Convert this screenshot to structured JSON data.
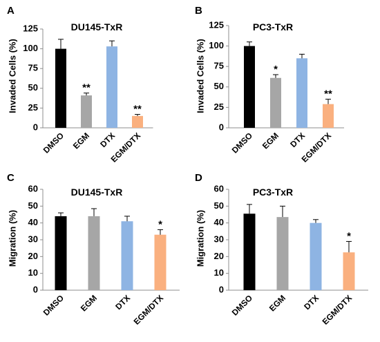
{
  "chart_data": [
    {
      "panel": "A",
      "type": "bar",
      "title": "DU145-TxR",
      "ylabel": "Invaded Cells (%)",
      "xlabel": "",
      "categories": [
        "DMSO",
        "EGM",
        "DTX",
        "EGM/DTX"
      ],
      "values": [
        100,
        41,
        103,
        15
      ],
      "errors": [
        12,
        3,
        7,
        2
      ],
      "significance": [
        "",
        "**",
        "",
        "**"
      ],
      "colors": [
        "#000000",
        "#a6a6a6",
        "#8eb4e3",
        "#fab07f"
      ],
      "ylim": [
        0,
        125
      ],
      "yticks": [
        0,
        25,
        50,
        75,
        100,
        125
      ]
    },
    {
      "panel": "B",
      "type": "bar",
      "title": "PC3-TxR",
      "ylabel": "Invaded Cells (%)",
      "xlabel": "",
      "categories": [
        "DMSO",
        "EGM",
        "DTX",
        "EGM/DTX"
      ],
      "values": [
        100,
        61,
        85,
        29
      ],
      "errors": [
        5,
        4,
        5,
        6
      ],
      "significance": [
        "",
        "*",
        "",
        "**"
      ],
      "colors": [
        "#000000",
        "#a6a6a6",
        "#8eb4e3",
        "#fab07f"
      ],
      "ylim": [
        0,
        125
      ],
      "yticks": [
        0,
        25,
        50,
        75,
        100,
        125
      ]
    },
    {
      "panel": "C",
      "type": "bar",
      "title": "DU145-TxR",
      "ylabel": "Migration (%)",
      "xlabel": "",
      "categories": [
        "DMSO",
        "EGM",
        "DTX",
        "EGM/DTX"
      ],
      "values": [
        44,
        44,
        41,
        33
      ],
      "errors": [
        2,
        4.5,
        3,
        3
      ],
      "significance": [
        "",
        "",
        "",
        "*"
      ],
      "colors": [
        "#000000",
        "#a6a6a6",
        "#8eb4e3",
        "#fab07f"
      ],
      "ylim": [
        0,
        60
      ],
      "yticks": [
        0,
        10,
        20,
        30,
        40,
        50,
        60
      ]
    },
    {
      "panel": "D",
      "type": "bar",
      "title": "PC3-TxR",
      "ylabel": "Migration (%)",
      "xlabel": "",
      "categories": [
        "DMSO",
        "EGM",
        "DTX",
        "EGM/DTX"
      ],
      "values": [
        45.5,
        43.5,
        40,
        22.5
      ],
      "errors": [
        5.5,
        6.5,
        2,
        6.5
      ],
      "significance": [
        "",
        "",
        "",
        "*"
      ],
      "colors": [
        "#000000",
        "#a6a6a6",
        "#8eb4e3",
        "#fab07f"
      ],
      "ylim": [
        0,
        60
      ],
      "yticks": [
        0,
        10,
        20,
        30,
        40,
        50,
        60
      ]
    }
  ]
}
